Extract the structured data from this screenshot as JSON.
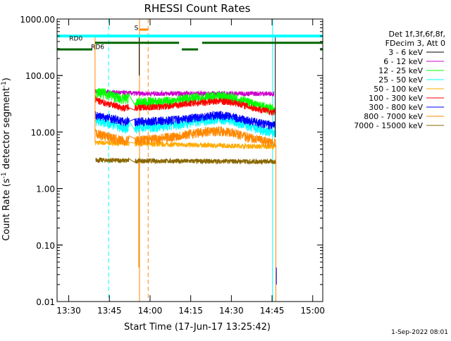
{
  "chart_data": {
    "type": "line",
    "title": "RHESSI Count Rates",
    "xlabel": "Start Time (17-Jun-17 13:25:42)",
    "ylabel": "Count Rate (s⁻¹ detector segment⁻¹)",
    "ylabel_parts": [
      "Count Rate (s",
      "-1",
      " detector segment",
      "-1",
      ")"
    ],
    "x_unit": "minutes after 13:25:42 UT",
    "xlim": [
      0,
      98
    ],
    "ylim": [
      0.01,
      1000
    ],
    "yscale": "log",
    "x_ticks": [
      {
        "value": 4.3,
        "label": "13:30"
      },
      {
        "value": 19.3,
        "label": "13:45"
      },
      {
        "value": 34.3,
        "label": "14:00"
      },
      {
        "value": 49.3,
        "label": "14:15"
      },
      {
        "value": 64.3,
        "label": "14:30"
      },
      {
        "value": 79.3,
        "label": "14:45"
      },
      {
        "value": 94.3,
        "label": "15:00"
      }
    ],
    "y_ticks": [
      {
        "value": 0.01,
        "label": "0.01"
      },
      {
        "value": 0.1,
        "label": "0.10"
      },
      {
        "value": 1,
        "label": "1.00"
      },
      {
        "value": 10,
        "label": "10.00"
      },
      {
        "value": 100,
        "label": "100.00"
      },
      {
        "value": 1000,
        "label": "1000.00"
      }
    ],
    "legend_placement": "right",
    "legend_header": [
      "Det 1f,3f,6f,8f,",
      "FDecim 3, Att 0"
    ],
    "series": [
      {
        "name": "3 - 6 keV",
        "color": "#000000",
        "x": [
          14,
          25.5,
          28.5,
          60,
          80,
          80.8
        ],
        "y": [
          500,
          500,
          510,
          510,
          490,
          480
        ]
      },
      {
        "name": "6 - 12 keV",
        "color": "#cc00cc",
        "x": [
          14.2,
          30,
          80
        ],
        "y": [
          52,
          48,
          48
        ]
      },
      {
        "name": "12 - 25 keV",
        "color": "#00ff00",
        "x": [
          14.2,
          15,
          18,
          20,
          23,
          25,
          26.5,
          27.3,
          28.5,
          30,
          33,
          38,
          42,
          46,
          50,
          54,
          58,
          62,
          65,
          68,
          71,
          74,
          77,
          80.6
        ],
        "y": [
          46,
          50,
          48,
          45,
          40,
          38,
          42,
          48,
          30,
          33,
          34,
          34,
          35,
          38,
          40,
          41,
          42,
          43,
          40,
          37,
          33,
          29,
          27,
          25
        ]
      },
      {
        "name": "25 - 50 keV",
        "color": "#00ffff",
        "x": [
          14.2,
          16,
          20,
          23,
          25,
          26.5,
          28.5,
          32,
          36,
          40,
          44,
          48,
          52,
          56,
          60,
          64,
          68,
          72,
          76,
          80.6
        ],
        "y": [
          16,
          15.5,
          14,
          12.5,
          11.5,
          13,
          12,
          12.2,
          12.4,
          12.8,
          13.5,
          14.5,
          15.5,
          16.5,
          17,
          16,
          14,
          12,
          10.5,
          9.5
        ]
      },
      {
        "name": "50 - 100 keV",
        "color": "#ffaa00",
        "x": [
          14.2,
          30,
          80.6
        ],
        "y": [
          6.5,
          6.2,
          5.5
        ]
      },
      {
        "name": "100 - 300 keV",
        "color": "#ff0000",
        "x": [
          14.2,
          16,
          20,
          23,
          25,
          26.5,
          28.5,
          32,
          36,
          40,
          44,
          48,
          52,
          56,
          60,
          64,
          68,
          72,
          76,
          80.6
        ],
        "y": [
          38,
          34,
          31,
          28,
          26.5,
          28.5,
          27,
          27.5,
          27.8,
          28.5,
          30,
          31.5,
          33,
          34.5,
          35.5,
          34,
          31,
          27,
          24.5,
          22
        ]
      },
      {
        "name": "300 - 800 keV",
        "color": "#0000ff",
        "x": [
          14.2,
          16,
          20,
          23,
          25,
          26.5,
          28.5,
          32,
          36,
          40,
          44,
          48,
          52,
          56,
          60,
          64,
          68,
          72,
          76,
          80.6
        ],
        "y": [
          20,
          19,
          17.5,
          16,
          15,
          16.5,
          15.2,
          15.4,
          15.6,
          16,
          16.8,
          17.5,
          18.5,
          19.5,
          20,
          19,
          17,
          15.5,
          14,
          13
        ]
      },
      {
        "name": "800 - 7000 keV",
        "color": "#ff8800",
        "x": [
          14.2,
          16,
          20,
          23,
          25,
          26.5,
          28.5,
          32,
          36,
          40,
          44,
          48,
          52,
          56,
          60,
          64,
          68,
          72,
          76,
          80.6
        ],
        "y": [
          9.5,
          9,
          8,
          7.3,
          6.9,
          7.6,
          7.1,
          7.3,
          7.6,
          8,
          8.5,
          9.2,
          9.8,
          10.4,
          10.6,
          10,
          8.8,
          7.8,
          7,
          6.5
        ]
      },
      {
        "name": "7000 - 15000 keV",
        "color": "#886600",
        "x": [
          14.2,
          30,
          80.6
        ],
        "y": [
          3.2,
          3.1,
          3
        ]
      }
    ],
    "annotations": {
      "labels": [
        {
          "text": "RD0",
          "color": "#006600"
        },
        {
          "text": "RD6",
          "color": "#006600"
        },
        {
          "text": "S",
          "color": "#ff8800"
        }
      ],
      "bars": [
        {
          "color": "#00ffff",
          "y": 500,
          "x_start": 0,
          "x_end": 98
        },
        {
          "color": "#006600",
          "y": 380,
          "x_start": 14,
          "x_end": 45
        },
        {
          "color": "#006600",
          "y": 380,
          "x_start": 53.5,
          "x_end": 98
        },
        {
          "color": "#006600",
          "y": 290,
          "x_start": 0,
          "x_end": 13
        },
        {
          "color": "#006600",
          "y": 290,
          "x_start": 46,
          "x_end": 52
        },
        {
          "color": "#006600",
          "y": 290,
          "x_start": 97,
          "x_end": 98
        },
        {
          "color": "#ff8800",
          "y": 650,
          "x_start": 30.5,
          "x_end": 33.5
        }
      ],
      "vlines": [
        {
          "color": "#00ffff",
          "dash": false,
          "x": 0
        },
        {
          "color": "#00ffff",
          "dash": true,
          "x": 19
        },
        {
          "color": "#00ffff",
          "dash": false,
          "x": 79.5
        },
        {
          "color": "#00ffff",
          "dash": true,
          "x": 98
        },
        {
          "color": "#ff8800",
          "dash": false,
          "x": 30.4
        },
        {
          "color": "#ff8800",
          "dash": true,
          "x": 33.6
        }
      ]
    },
    "footer_stamp": "1-Sep-2022 08:01"
  }
}
